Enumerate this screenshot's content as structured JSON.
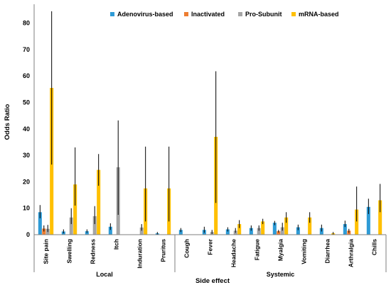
{
  "chart_data": {
    "type": "bar",
    "title": "",
    "xlabel": "Side effect",
    "ylabel": "Odds Ratio",
    "ylim": [
      0,
      85
    ],
    "yticks": [
      0,
      10,
      20,
      30,
      40,
      50,
      60,
      70,
      80
    ],
    "grid": false,
    "legend_position": "top",
    "categories": [
      "Site pain",
      "Swelling",
      "Redness",
      "Itch",
      "Induration",
      "Pruritus",
      "Cough",
      "Fever",
      "Headache",
      "Fatigue",
      "Myalgia",
      "Vomiting",
      "Diarrhea",
      "Arthralgia",
      "Chills"
    ],
    "groups": [
      {
        "label": "Local",
        "categories": [
          "Site pain",
          "Swelling",
          "Redness",
          "Itch",
          "Induration",
          "Pruritus"
        ]
      },
      {
        "label": "Systemic",
        "categories": [
          "Cough",
          "Fever",
          "Headache",
          "Fatigue",
          "Myalgia",
          "Vomiting",
          "Diarrhea",
          "Arthralgia",
          "Chills"
        ]
      }
    ],
    "series": [
      {
        "name": "Adenovirus-based",
        "color": "#2E9BD6",
        "values": [
          8.5,
          1.2,
          1.3,
          3.0,
          null,
          0.5,
          1.8,
          1.8,
          2.0,
          2.5,
          4.5,
          2.8,
          2.5,
          4.0,
          10.5
        ],
        "err_low": [
          6.2,
          0.5,
          0.7,
          1.8,
          null,
          0.1,
          1.0,
          0.7,
          1.2,
          1.5,
          3.6,
          1.7,
          1.2,
          2.9,
          7.8
        ],
        "err_high": [
          11.2,
          2.0,
          2.0,
          4.3,
          null,
          1.0,
          2.5,
          3.0,
          2.8,
          3.5,
          5.2,
          3.8,
          3.8,
          5.3,
          13.6
        ]
      },
      {
        "name": "Inactivated",
        "color": "#ED7D31",
        "values": [
          2.3,
          null,
          null,
          null,
          null,
          null,
          null,
          null,
          null,
          null,
          1.3,
          null,
          null,
          1.5,
          null
        ],
        "err_low": [
          1.2,
          null,
          null,
          null,
          null,
          null,
          null,
          null,
          null,
          null,
          0.8,
          null,
          null,
          0.7,
          null
        ],
        "err_high": [
          3.5,
          null,
          null,
          null,
          null,
          null,
          null,
          null,
          null,
          null,
          1.8,
          null,
          null,
          2.2,
          null
        ]
      },
      {
        "name": "Pro-Subunit",
        "color": "#A5A5A5",
        "values": [
          2.2,
          6.5,
          7.0,
          25.5,
          2.7,
          null,
          null,
          1.0,
          1.5,
          2.5,
          2.8,
          null,
          null,
          null,
          null
        ],
        "err_low": [
          1.0,
          4.0,
          4.0,
          7.5,
          1.5,
          null,
          null,
          0.3,
          0.7,
          1.5,
          1.5,
          null,
          null,
          null,
          null
        ],
        "err_high": [
          3.7,
          10.0,
          10.8,
          43.2,
          4.0,
          null,
          null,
          1.8,
          2.5,
          3.5,
          4.5,
          null,
          null,
          null,
          null
        ]
      },
      {
        "name": "mRNA-based",
        "color": "#FFC000",
        "values": [
          55.5,
          19.0,
          24.5,
          null,
          17.5,
          17.5,
          null,
          37.0,
          4.0,
          5.0,
          6.5,
          6.5,
          0.5,
          9.5,
          13.0
        ],
        "err_low": [
          26.5,
          11.0,
          18.5,
          null,
          5.0,
          5.0,
          null,
          12.0,
          2.5,
          4.0,
          4.5,
          4.5,
          0.1,
          5.0,
          8.5
        ],
        "err_high": [
          84.5,
          33.0,
          30.5,
          null,
          33.3,
          33.3,
          null,
          61.8,
          5.5,
          6.0,
          8.5,
          8.5,
          1.0,
          18.2,
          19.2
        ]
      }
    ]
  }
}
